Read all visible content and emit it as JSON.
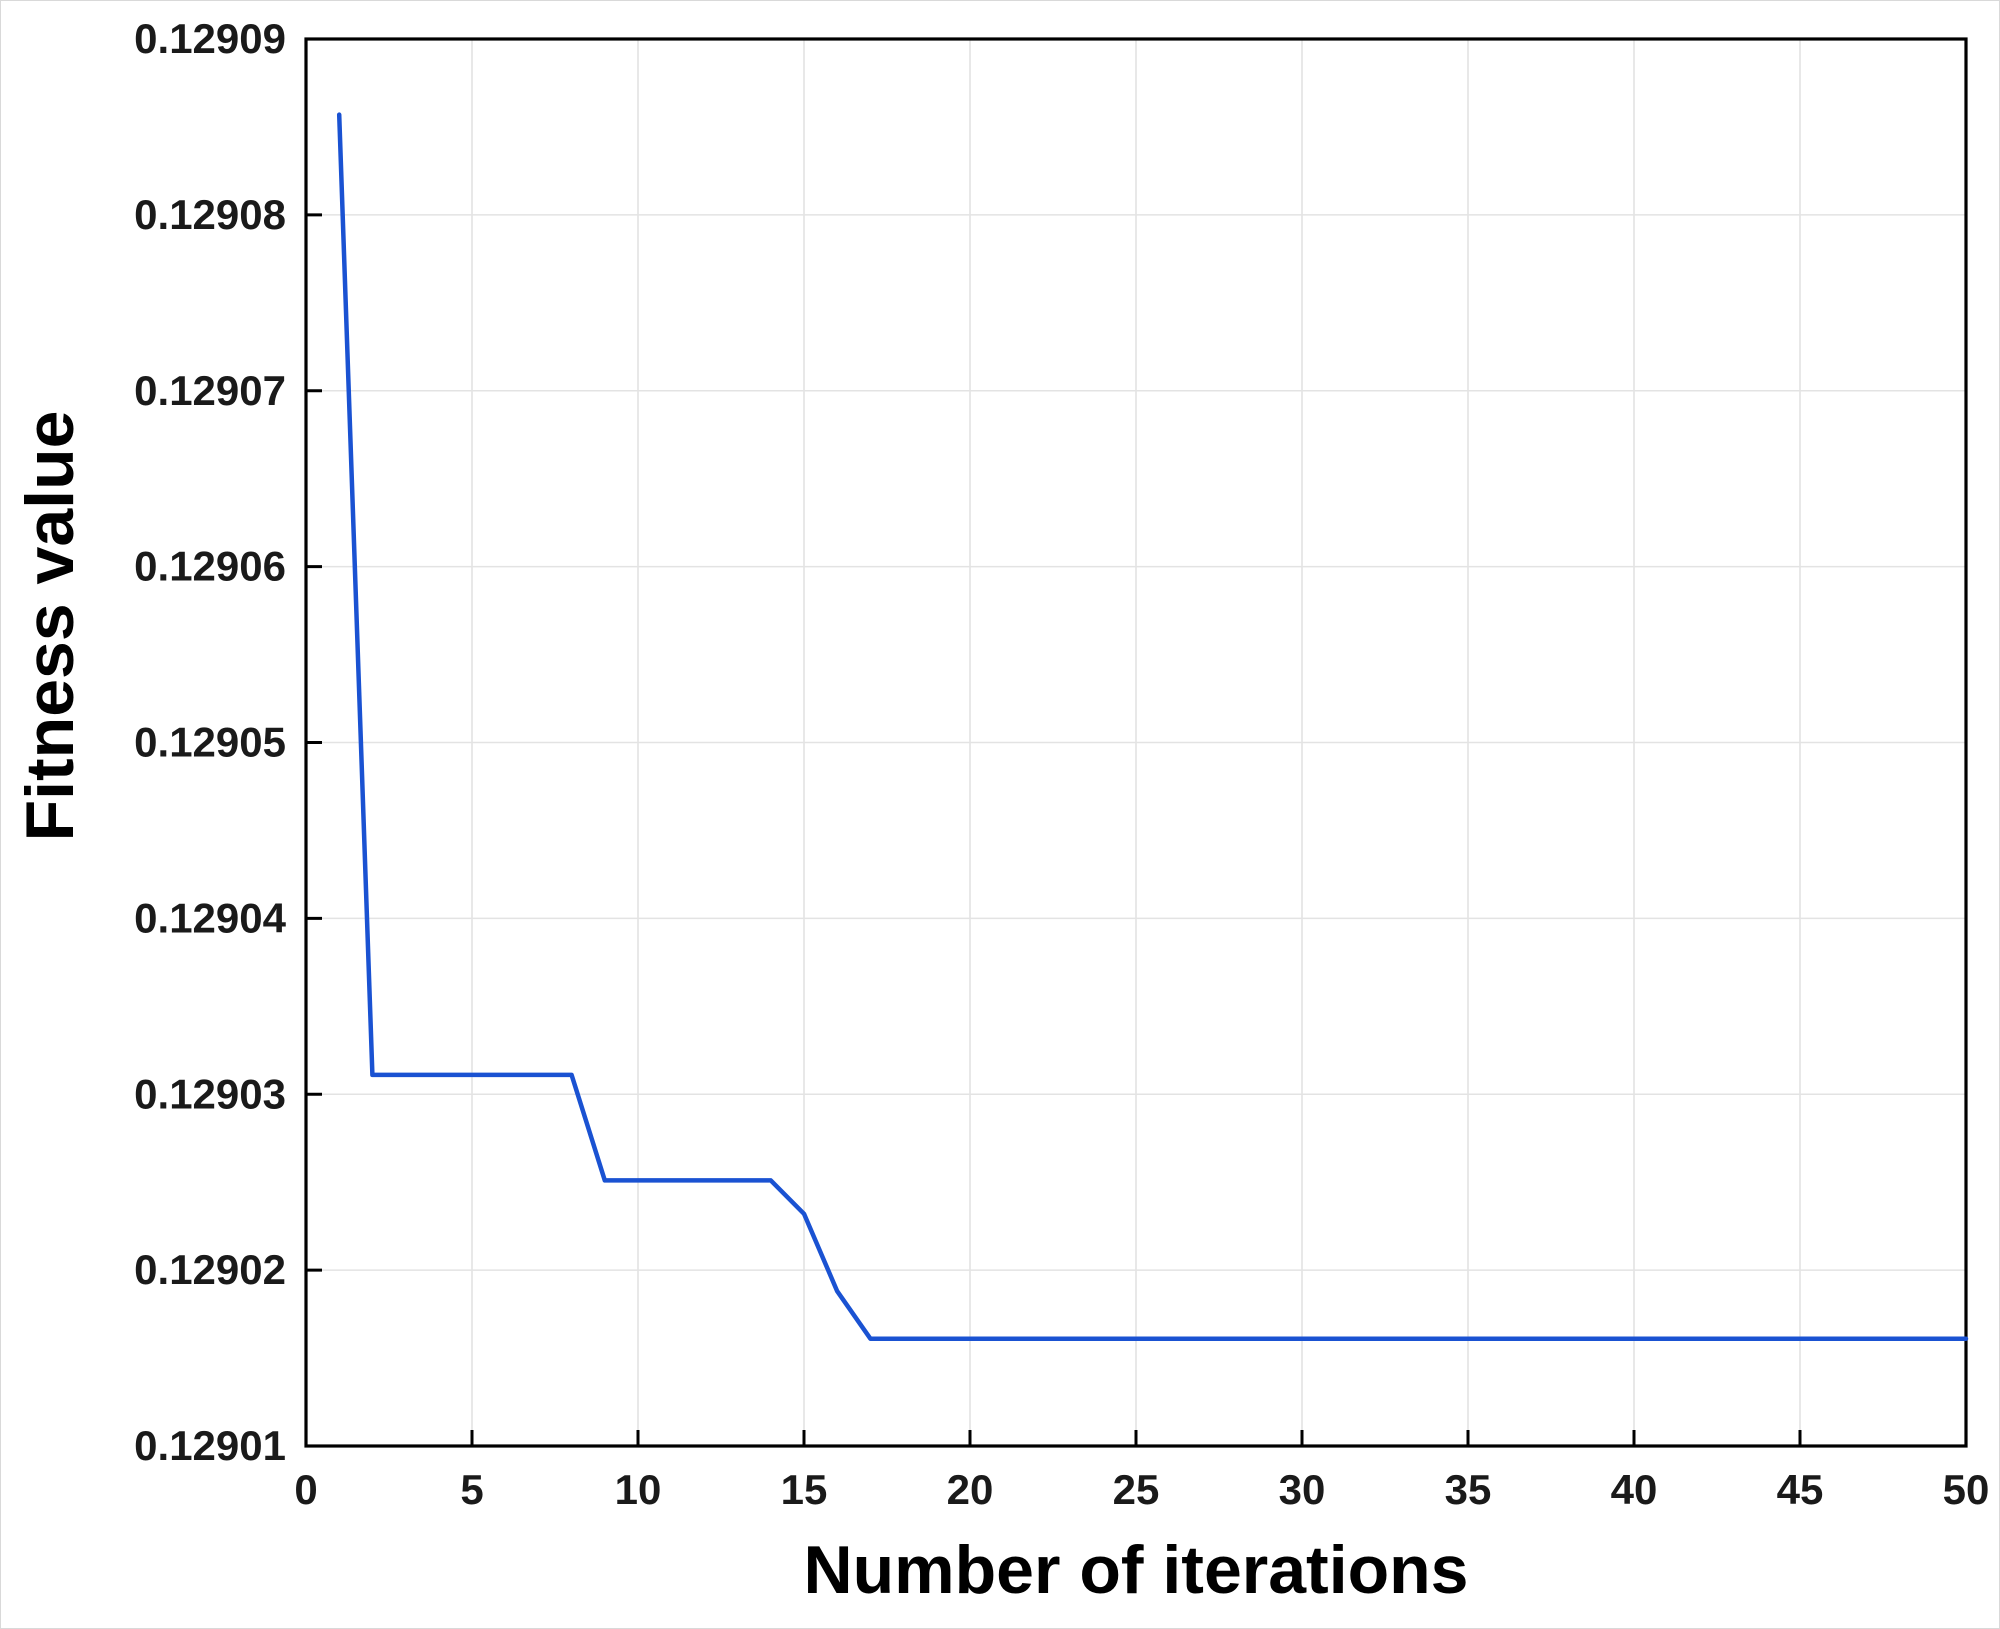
{
  "chart_data": {
    "type": "line",
    "title": "",
    "xlabel": "Number of iterations",
    "ylabel": "Fitness value",
    "xlim": [
      0,
      50
    ],
    "ylim": [
      0.12901,
      0.12909
    ],
    "grid": true,
    "legend_position": "none",
    "xticks": [
      {
        "v": 0,
        "label": "0"
      },
      {
        "v": 5,
        "label": "5"
      },
      {
        "v": 10,
        "label": "10"
      },
      {
        "v": 15,
        "label": "15"
      },
      {
        "v": 20,
        "label": "20"
      },
      {
        "v": 25,
        "label": "25"
      },
      {
        "v": 30,
        "label": "30"
      },
      {
        "v": 35,
        "label": "35"
      },
      {
        "v": 40,
        "label": "40"
      },
      {
        "v": 45,
        "label": "45"
      },
      {
        "v": 50,
        "label": "50"
      }
    ],
    "yticks": [
      {
        "v": 0.12901,
        "label": "0.12901"
      },
      {
        "v": 0.12902,
        "label": "0.12902"
      },
      {
        "v": 0.12903,
        "label": "0.12903"
      },
      {
        "v": 0.12904,
        "label": "0.12904"
      },
      {
        "v": 0.12905,
        "label": "0.12905"
      },
      {
        "v": 0.12906,
        "label": "0.12906"
      },
      {
        "v": 0.12907,
        "label": "0.12907"
      },
      {
        "v": 0.12908,
        "label": "0.12908"
      },
      {
        "v": 0.12909,
        "label": "0.12909"
      }
    ],
    "series": [
      {
        "name": "fitness",
        "color": "#1a52d2",
        "x": [
          1,
          2,
          3,
          4,
          5,
          6,
          7,
          8,
          9,
          10,
          11,
          12,
          13,
          14,
          15,
          16,
          17,
          18,
          19,
          20,
          21,
          22,
          23,
          24,
          25,
          26,
          27,
          28,
          29,
          30,
          31,
          32,
          33,
          34,
          35,
          36,
          37,
          38,
          39,
          40,
          41,
          42,
          43,
          44,
          45,
          46,
          47,
          48,
          49,
          50
        ],
        "y": [
          0.1290857,
          0.1290311,
          0.1290311,
          0.1290311,
          0.1290311,
          0.1290311,
          0.1290311,
          0.1290311,
          0.1290251,
          0.1290251,
          0.1290251,
          0.1290251,
          0.1290251,
          0.1290251,
          0.1290232,
          0.1290188,
          0.1290161,
          0.1290161,
          0.1290161,
          0.1290161,
          0.1290161,
          0.1290161,
          0.1290161,
          0.1290161,
          0.1290161,
          0.1290161,
          0.1290161,
          0.1290161,
          0.1290161,
          0.1290161,
          0.1290161,
          0.1290161,
          0.1290161,
          0.1290161,
          0.1290161,
          0.1290161,
          0.1290161,
          0.1290161,
          0.1290161,
          0.1290161,
          0.1290161,
          0.1290161,
          0.1290161,
          0.1290161,
          0.1290161,
          0.1290161,
          0.1290161,
          0.1290161,
          0.1290161,
          0.1290161
        ]
      }
    ]
  }
}
